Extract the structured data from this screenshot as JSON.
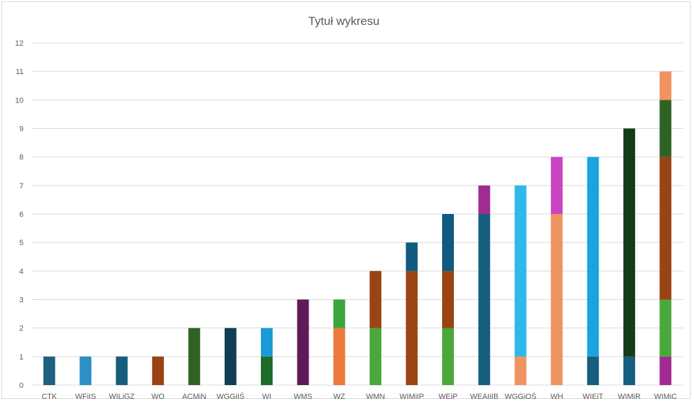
{
  "chart_data": {
    "type": "bar",
    "stacked": true,
    "title": "Tytuł wykresu",
    "xlabel": "",
    "ylabel": "",
    "ylim": [
      0,
      12
    ],
    "yticks": [
      0,
      1,
      2,
      3,
      4,
      5,
      6,
      7,
      8,
      9,
      10,
      11,
      12
    ],
    "grid": true,
    "legend": "none",
    "categories": [
      "CTK",
      "WFiIS",
      "WILiGZ",
      "WO",
      "ACMiN",
      "WGGiIŚ",
      "WI",
      "WMS",
      "WZ",
      "WMN",
      "WIMiIP",
      "WEiP",
      "WEAIiIB",
      "WGGiOŚ",
      "WH",
      "WIEiT",
      "WIMiR",
      "WIMiC"
    ],
    "stacks": [
      [
        {
          "value": 1,
          "color": "#1f5f7f"
        }
      ],
      [
        {
          "value": 1,
          "color": "#2e8fc6"
        }
      ],
      [
        {
          "value": 1,
          "color": "#155e7e"
        }
      ],
      [
        {
          "value": 1,
          "color": "#9a4213"
        }
      ],
      [
        {
          "value": 2,
          "color": "#2e6324"
        }
      ],
      [
        {
          "value": 2,
          "color": "#0f3d52"
        }
      ],
      [
        {
          "value": 1,
          "color": "#1f6b2b"
        },
        {
          "value": 1,
          "color": "#1b9bd6"
        }
      ],
      [
        {
          "value": 3,
          "color": "#5f1a5a"
        }
      ],
      [
        {
          "value": 2,
          "color": "#ec7a3b"
        },
        {
          "value": 1,
          "color": "#3aa63d"
        }
      ],
      [
        {
          "value": 2,
          "color": "#4aa83a"
        },
        {
          "value": 2,
          "color": "#9a4413"
        }
      ],
      [
        {
          "value": 4,
          "color": "#9a4413"
        },
        {
          "value": 1,
          "color": "#0f5a7e"
        }
      ],
      [
        {
          "value": 2,
          "color": "#4aa83a"
        },
        {
          "value": 2,
          "color": "#9a4413"
        },
        {
          "value": 2,
          "color": "#0f5a7e"
        }
      ],
      [
        {
          "value": 6,
          "color": "#155e7e"
        },
        {
          "value": 1,
          "color": "#a02c91"
        }
      ],
      [
        {
          "value": 1,
          "color": "#ef9360"
        },
        {
          "value": 6,
          "color": "#2db9ec"
        }
      ],
      [
        {
          "value": 6,
          "color": "#ef9360"
        },
        {
          "value": 2,
          "color": "#cb45c3"
        }
      ],
      [
        {
          "value": 1,
          "color": "#155e7e"
        },
        {
          "value": 7,
          "color": "#1aa3df"
        }
      ],
      [
        {
          "value": 1,
          "color": "#155e7e"
        },
        {
          "value": 8,
          "color": "#143d17"
        }
      ],
      [
        {
          "value": 1,
          "color": "#a02c91"
        },
        {
          "value": 2,
          "color": "#4aa83a"
        },
        {
          "value": 5,
          "color": "#9a4413"
        },
        {
          "value": 2,
          "color": "#2e6324"
        },
        {
          "value": 1,
          "color": "#ef9360"
        }
      ]
    ]
  }
}
